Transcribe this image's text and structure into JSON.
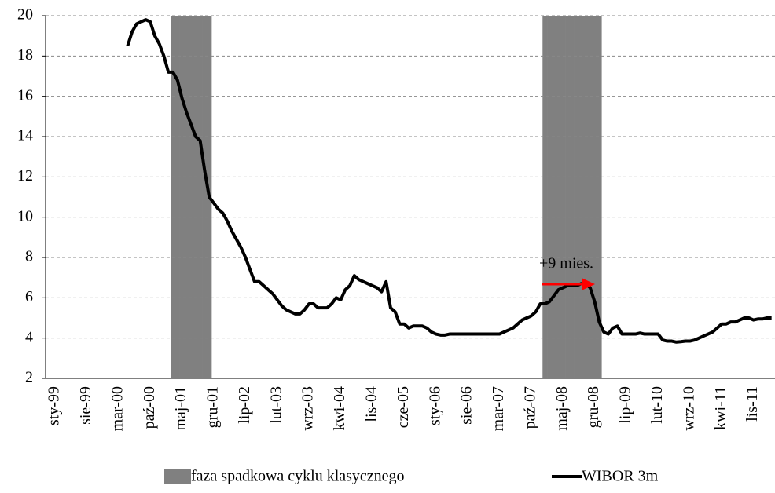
{
  "chart_data": {
    "type": "combo",
    "categories": [
      "sty-99",
      null,
      null,
      null,
      null,
      null,
      null,
      "sie-99",
      null,
      null,
      null,
      null,
      null,
      null,
      "mar-00",
      null,
      null,
      null,
      null,
      null,
      null,
      "paź-00",
      null,
      null,
      null,
      null,
      null,
      null,
      "maj-01",
      null,
      null,
      null,
      null,
      null,
      null,
      "gru-01",
      null,
      null,
      null,
      null,
      null,
      null,
      "lip-02",
      null,
      null,
      null,
      null,
      null,
      null,
      "lut-03",
      null,
      null,
      null,
      null,
      null,
      null,
      "wrz-03",
      null,
      null,
      null,
      null,
      null,
      null,
      "kwi-04",
      null,
      null,
      null,
      null,
      null,
      null,
      "lis-04",
      null,
      null,
      null,
      null,
      null,
      null,
      "cze-05",
      null,
      null,
      null,
      null,
      null,
      null,
      "sty-06",
      null,
      null,
      null,
      null,
      null,
      null,
      "sie-06",
      null,
      null,
      null,
      null,
      null,
      null,
      "mar-07",
      null,
      null,
      null,
      null,
      null,
      null,
      "paź-07",
      null,
      null,
      null,
      null,
      null,
      null,
      "maj-08",
      null,
      null,
      null,
      null,
      null,
      null,
      "gru-08",
      null,
      null,
      null,
      null,
      null,
      null,
      "lip-09",
      null,
      null,
      null,
      null,
      null,
      null,
      "lut-10",
      null,
      null,
      null,
      null,
      null,
      null,
      "wrz-10",
      null,
      null,
      null,
      null,
      null,
      null,
      "kwi-11",
      null,
      null,
      null,
      null,
      null,
      null,
      "lis-11",
      null,
      null,
      null,
      null
    ],
    "series": [
      {
        "name": "faza spadkowa cyklu klasycznego",
        "type": "bar",
        "color": "#808080",
        "values": [
          null,
          null,
          null,
          null,
          null,
          null,
          null,
          null,
          null,
          null,
          null,
          null,
          null,
          null,
          null,
          null,
          null,
          null,
          null,
          null,
          null,
          null,
          null,
          null,
          null,
          null,
          20,
          20,
          20,
          20,
          20,
          20,
          20,
          20,
          20,
          null,
          null,
          null,
          null,
          null,
          null,
          null,
          null,
          null,
          null,
          null,
          null,
          null,
          null,
          null,
          null,
          null,
          null,
          null,
          null,
          null,
          null,
          null,
          null,
          null,
          null,
          null,
          null,
          null,
          null,
          null,
          null,
          null,
          null,
          null,
          null,
          null,
          null,
          null,
          null,
          null,
          null,
          null,
          null,
          null,
          null,
          null,
          null,
          null,
          null,
          null,
          null,
          null,
          null,
          null,
          null,
          null,
          null,
          null,
          null,
          null,
          null,
          null,
          null,
          null,
          null,
          null,
          null,
          null,
          null,
          null,
          null,
          null,
          20,
          20,
          20,
          20,
          20,
          20,
          20,
          20,
          20,
          20,
          20,
          20,
          20,
          null,
          null,
          null,
          null,
          null,
          null,
          null,
          null,
          null,
          null,
          null,
          null,
          null,
          null,
          null,
          null,
          null,
          null,
          null,
          null,
          null,
          null,
          null,
          null,
          null,
          null,
          null,
          null,
          null,
          null,
          null,
          null,
          null,
          null,
          null,
          null,
          null,
          null
        ]
      },
      {
        "name": "WIBOR 3m",
        "type": "line",
        "color": "#000000",
        "values": [
          null,
          null,
          null,
          null,
          null,
          null,
          null,
          null,
          null,
          null,
          null,
          null,
          null,
          null,
          null,
          null,
          18.5,
          19.2,
          19.6,
          19.7,
          19.8,
          19.7,
          19.0,
          18.6,
          18.0,
          17.2,
          17.2,
          16.8,
          15.9,
          15.2,
          14.6,
          14.0,
          13.8,
          12.3,
          11.0,
          10.7,
          10.4,
          10.2,
          9.8,
          9.3,
          8.9,
          8.5,
          8.0,
          7.4,
          6.8,
          6.8,
          6.6,
          6.4,
          6.2,
          5.9,
          5.6,
          5.4,
          5.3,
          5.2,
          5.2,
          5.4,
          5.7,
          5.7,
          5.5,
          5.5,
          5.5,
          5.7,
          6.0,
          5.9,
          6.4,
          6.6,
          7.1,
          6.9,
          6.8,
          6.7,
          6.6,
          6.5,
          6.3,
          6.8,
          5.5,
          5.3,
          4.7,
          4.7,
          4.5,
          4.6,
          4.6,
          4.6,
          4.5,
          4.3,
          4.2,
          4.15,
          4.15,
          4.2,
          4.2,
          4.2,
          4.2,
          4.2,
          4.2,
          4.2,
          4.2,
          4.2,
          4.2,
          4.2,
          4.2,
          4.3,
          4.4,
          4.5,
          4.7,
          4.9,
          5.0,
          5.1,
          5.3,
          5.7,
          5.7,
          5.8,
          6.1,
          6.4,
          6.5,
          6.6,
          6.6,
          6.6,
          6.7,
          6.7,
          6.5,
          5.8,
          4.8,
          4.3,
          4.2,
          4.5,
          4.6,
          4.2,
          4.2,
          4.2,
          4.2,
          4.25,
          4.2,
          4.2,
          4.2,
          4.2,
          3.9,
          3.85,
          3.85,
          3.8,
          3.82,
          3.85,
          3.85,
          3.9,
          4.0,
          4.1,
          4.2,
          4.3,
          4.5,
          4.7,
          4.7,
          4.8,
          4.8,
          4.9,
          5.0,
          5.0,
          4.9,
          4.95,
          4.95,
          5.0,
          5.0
        ]
      }
    ],
    "annotation": "+9 mies.",
    "ylim": [
      2,
      20
    ],
    "yticks": [
      2,
      4,
      6,
      8,
      10,
      12,
      14,
      16,
      18,
      20
    ],
    "grid": true
  }
}
